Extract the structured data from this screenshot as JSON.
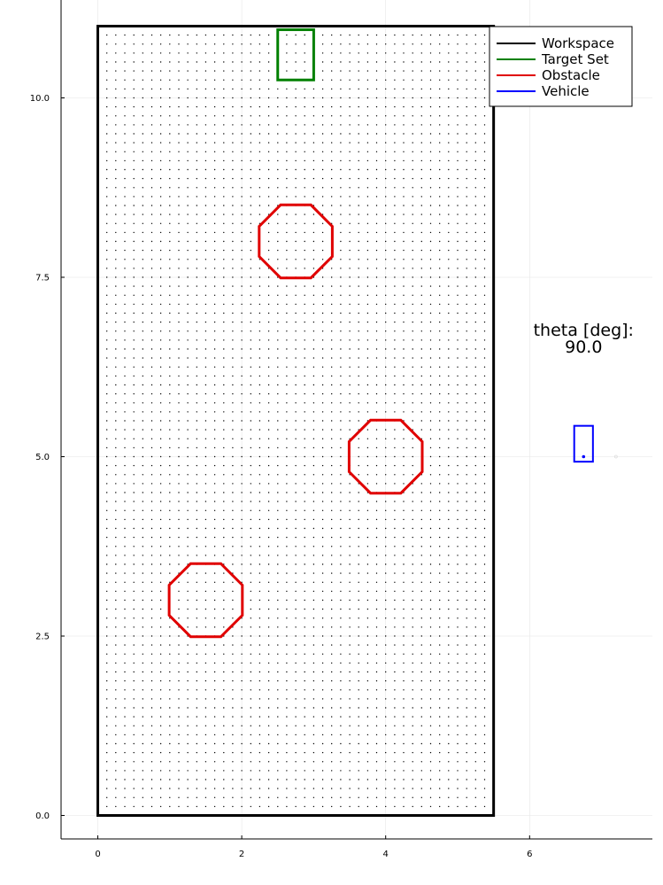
{
  "chart_data": {
    "type": "scatter",
    "title": "",
    "xlabel": "",
    "ylabel": "",
    "xlim": [
      -0.5,
      7.75
    ],
    "ylim": [
      -0.3,
      11.35
    ],
    "grid": true,
    "legend_position": "top-right",
    "x_ticks": [
      0,
      2,
      4,
      6
    ],
    "x_tick_labels": [
      "0",
      "2",
      "4",
      "6"
    ],
    "y_ticks": [
      0,
      2.5,
      5,
      7.5,
      10
    ],
    "y_tick_labels": [
      "0.0",
      "2.5",
      "5.0",
      "7.5",
      "10.0"
    ],
    "series": [
      {
        "name": "Workspace",
        "color": "#000000",
        "kind": "rectangle",
        "x": [
          0,
          5.5
        ],
        "y": [
          0,
          11
        ]
      },
      {
        "name": "Target Set",
        "color": "#008000",
        "kind": "rectangle",
        "x": [
          2.5,
          3.0
        ],
        "y": [
          10.25,
          10.95
        ]
      },
      {
        "name": "Obstacle",
        "color": "#e00000",
        "kind": "octagons",
        "octagons": [
          {
            "center": [
              2.75,
              8.0
            ],
            "radius": 0.55
          },
          {
            "center": [
              4.0,
              5.0
            ],
            "radius": 0.55
          },
          {
            "center": [
              1.5,
              3.0
            ],
            "radius": 0.55
          }
        ]
      },
      {
        "name": "Vehicle",
        "color": "#0000ff",
        "kind": "rectangle",
        "x": [
          6.62,
          6.88
        ],
        "y": [
          4.93,
          5.43
        ],
        "point": [
          6.75,
          5.0
        ]
      }
    ],
    "grid_points": {
      "color": "#000000",
      "spacing": 0.125,
      "x": [
        0.125,
        5.375
      ],
      "y": [
        0.125,
        10.875
      ]
    },
    "annotation": {
      "lines": [
        "theta [deg]:",
        "90.0"
      ],
      "position": [
        6.75,
        6.5
      ]
    },
    "faint_marker": [
      7.2,
      5.0
    ]
  }
}
